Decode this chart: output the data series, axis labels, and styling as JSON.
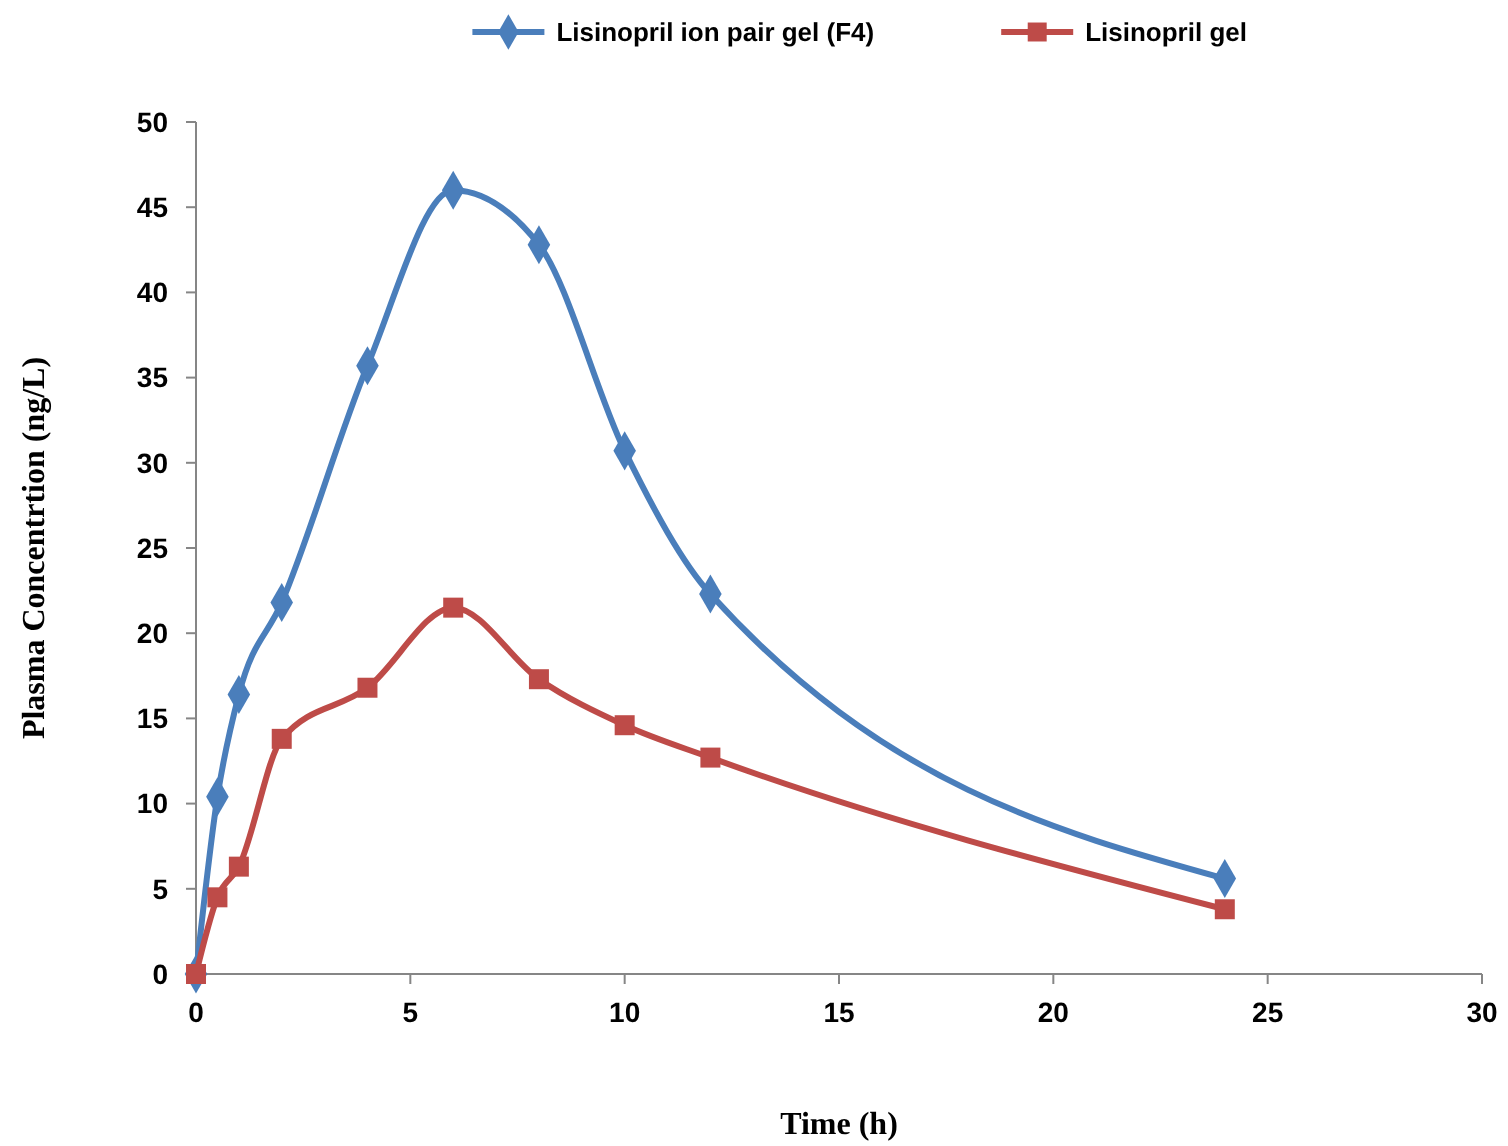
{
  "chart_data": {
    "type": "line",
    "xlabel": "Time (h)",
    "ylabel": "Plasma Concentrtion (ng/L)",
    "xlim": [
      0,
      30
    ],
    "xticks": [
      0,
      5,
      10,
      15,
      20,
      25,
      30
    ],
    "ylim": [
      0,
      50
    ],
    "yticks": [
      0,
      5,
      10,
      15,
      20,
      25,
      30,
      35,
      40,
      45,
      50
    ],
    "grid": false,
    "legend": "top",
    "series": [
      {
        "name": "Lisinopril ion pair gel (F4)",
        "color": "#4a7ebb",
        "marker": "diamond",
        "x": [
          0,
          0.5,
          1,
          2,
          4,
          6,
          8,
          10,
          12,
          24
        ],
        "values": [
          0,
          10.4,
          16.4,
          21.8,
          35.7,
          46,
          42.8,
          30.7,
          22.3,
          5.6
        ]
      },
      {
        "name": "Lisinopril gel",
        "color": "#be4b48",
        "marker": "square",
        "x": [
          0,
          0.5,
          1,
          2,
          4,
          6,
          8,
          10,
          12,
          24
        ],
        "values": [
          0,
          4.5,
          6.3,
          13.8,
          16.8,
          21.5,
          17.3,
          14.6,
          12.7,
          3.8
        ]
      }
    ]
  }
}
